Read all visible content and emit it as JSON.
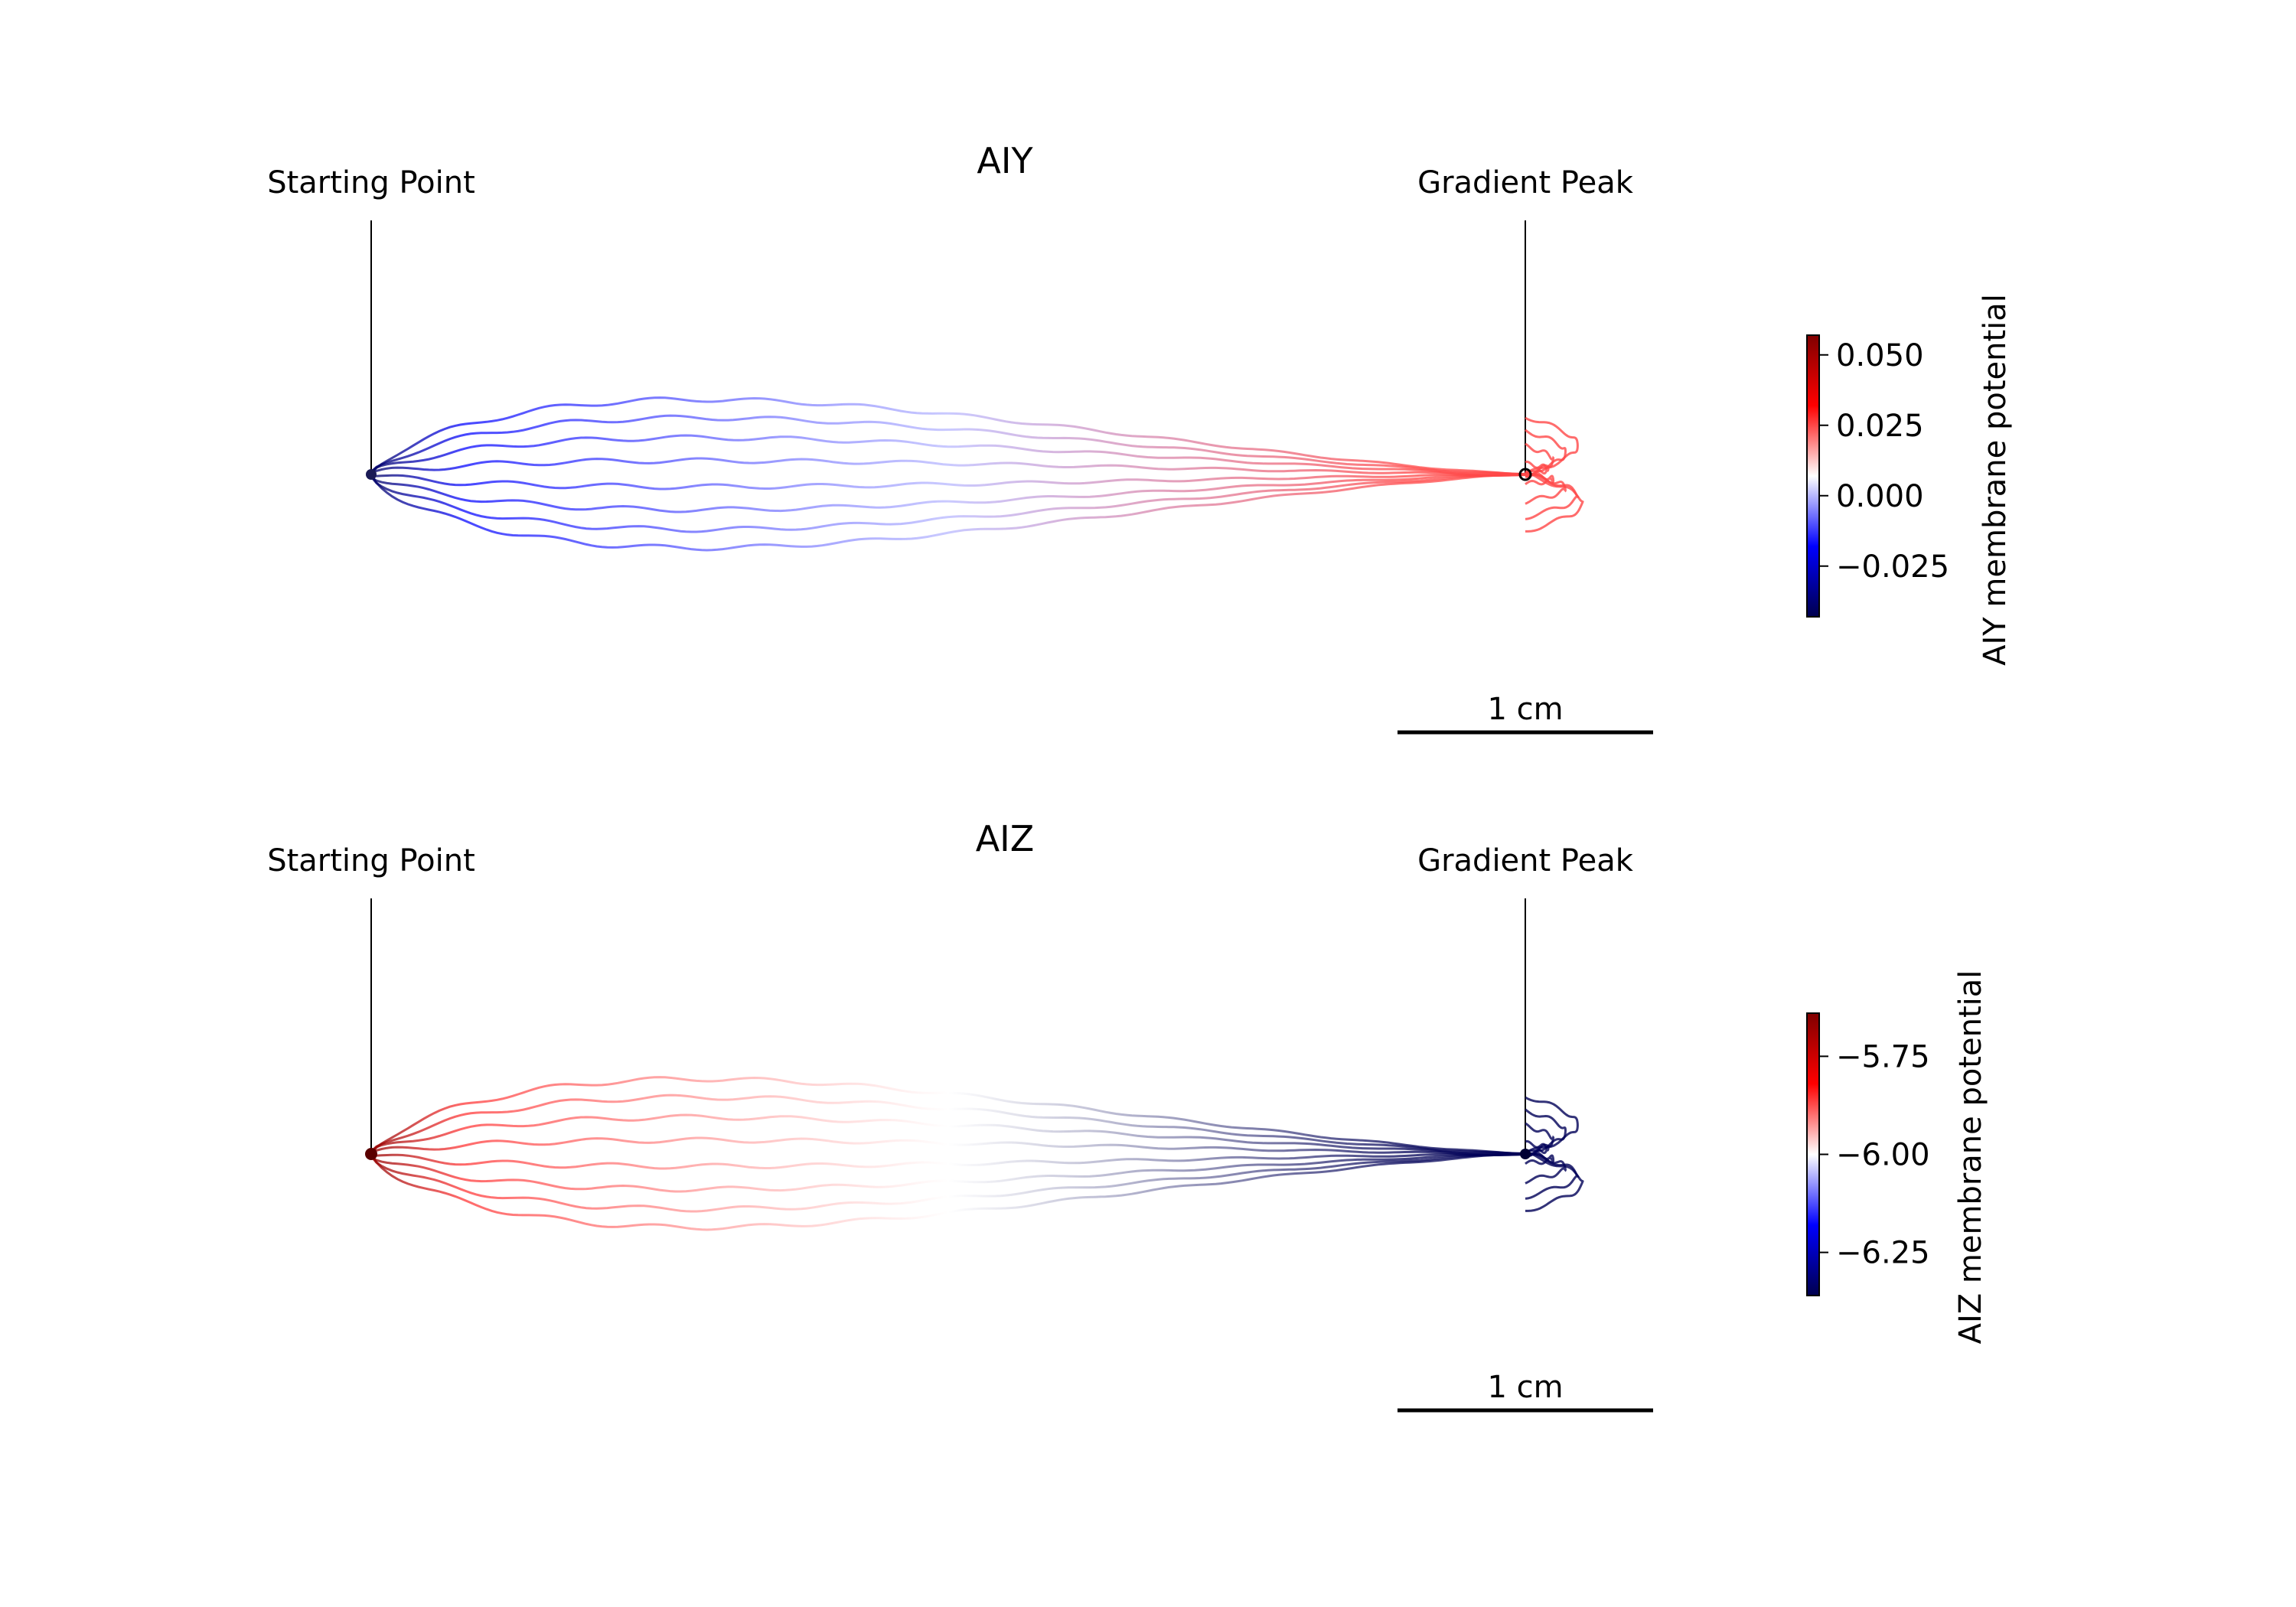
{
  "chart_data": [
    {
      "type": "line",
      "title": "AIY",
      "annotations": [
        "Starting Point",
        "Gradient Peak"
      ],
      "scalebar_label": "1 cm",
      "xlabel": "",
      "ylabel": "",
      "colorbar": {
        "label": "AIY membrane potential",
        "ticks": [
          0.05,
          0.025,
          0.0,
          -0.025
        ],
        "tick_labels": [
          "0.050",
          "0.025",
          "0.000",
          "−0.025"
        ],
        "range": [
          -0.043,
          0.057
        ],
        "colormap": "seismic",
        "colors": [
          "#00004d",
          "#0000ff",
          "#ffffff",
          "#ff0000",
          "#800000"
        ]
      },
      "start_value": -0.04,
      "mid_value": 0.0,
      "end_value": 0.025,
      "grid": false
    },
    {
      "type": "line",
      "title": "AIZ",
      "annotations": [
        "Starting Point",
        "Gradient Peak"
      ],
      "scalebar_label": "1 cm",
      "xlabel": "",
      "ylabel": "",
      "colorbar": {
        "label": "AIZ membrane potential",
        "ticks": [
          -5.75,
          -6.0,
          -6.25
        ],
        "tick_labels": [
          "−5.75",
          "−6.00",
          "−6.25"
        ],
        "range": [
          -6.36,
          -5.64
        ],
        "colormap": "seismic",
        "colors": [
          "#00004d",
          "#0000ff",
          "#ffffff",
          "#ff0000",
          "#800000"
        ]
      },
      "start_value": -5.67,
      "mid_value": -6.0,
      "end_value": -6.35,
      "grid": false
    }
  ]
}
